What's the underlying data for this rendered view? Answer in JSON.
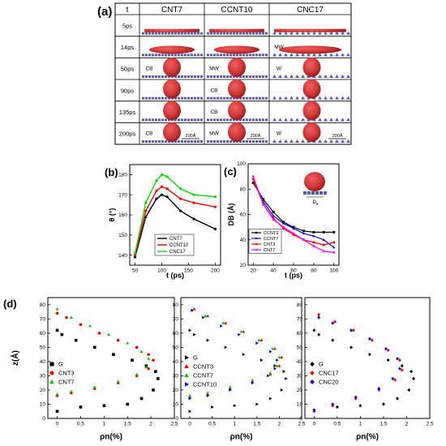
{
  "panel_a": {
    "label": "(a)",
    "header_t": "t",
    "columns": [
      "CNT7",
      "CCNT10",
      "CNC17"
    ],
    "rows": [
      {
        "time": "5ps",
        "tags": [
          "",
          "",
          ""
        ],
        "droplet": [
          0,
          0,
          0
        ]
      },
      {
        "time": "14ps",
        "tags": [
          "",
          "",
          "MW"
        ],
        "droplet": [
          1,
          1,
          1
        ]
      },
      {
        "time": "50ps",
        "tags": [
          "CB",
          "MW",
          "W"
        ],
        "droplet": [
          2,
          2,
          2
        ]
      },
      {
        "time": "90ps",
        "tags": [
          "",
          "CB",
          ""
        ],
        "droplet": [
          2,
          2,
          2
        ]
      },
      {
        "time": "135ps",
        "tags": [
          "",
          "CB",
          ""
        ],
        "droplet": [
          2,
          2,
          2
        ]
      },
      {
        "time": "200ps",
        "tags": [
          "CB",
          "MW",
          "W"
        ],
        "droplet": [
          2,
          2,
          2
        ]
      }
    ],
    "scale_label": "200Å"
  },
  "panel_b_label": "(b)",
  "panel_c_label": "(c)",
  "panel_c_inset_label": "D",
  "panel_c_inset_sub": "B",
  "panel_d_label": "(d)",
  "chart_data": [
    {
      "type": "line",
      "id": "b",
      "xlabel": "t (ps)",
      "ylabel": "θ (°)",
      "xlim": [
        40,
        210
      ],
      "ylim": [
        135,
        185
      ],
      "xticks": [
        50,
        100,
        150,
        200
      ],
      "yticks": [
        140,
        150,
        160,
        170,
        180
      ],
      "legend": "bottom-right",
      "series": [
        {
          "name": "CNT7",
          "color": "#000000",
          "x": [
            50,
            70,
            90,
            100,
            110,
            135,
            160,
            200
          ],
          "y": [
            139,
            159,
            168,
            170,
            169,
            162,
            158,
            153
          ]
        },
        {
          "name": "CCNT10",
          "color": "#ff0000",
          "x": [
            50,
            70,
            90,
            100,
            110,
            135,
            160,
            200
          ],
          "y": [
            140,
            162,
            172,
            174,
            173,
            168,
            166,
            164
          ]
        },
        {
          "name": "CNC17",
          "color": "#00dd00",
          "x": [
            50,
            70,
            90,
            100,
            110,
            135,
            160,
            200
          ],
          "y": [
            141,
            166,
            177,
            180,
            179,
            173,
            170,
            169
          ]
        }
      ]
    },
    {
      "type": "line",
      "id": "c",
      "xlabel": "t (ps)",
      "ylabel": "DB (Å)",
      "xlim": [
        15,
        105
      ],
      "ylim": [
        20,
        100
      ],
      "xticks": [
        20,
        40,
        60,
        80,
        100
      ],
      "yticks": [
        20,
        40,
        60,
        80,
        100
      ],
      "legend": "bottom-left",
      "series": [
        {
          "name": "CCNT3",
          "color": "#000000",
          "marker": "square",
          "x": [
            20,
            30,
            40,
            50,
            60,
            70,
            80,
            90,
            100
          ],
          "y": [
            85,
            72,
            62,
            54,
            50,
            47,
            46,
            46,
            46
          ]
        },
        {
          "name": "CCNT7",
          "color": "#0000ff",
          "marker": "triangle",
          "x": [
            20,
            30,
            40,
            50,
            60,
            70,
            80,
            90,
            100
          ],
          "y": [
            88,
            70,
            59,
            53,
            49,
            45,
            43,
            40,
            34
          ]
        },
        {
          "name": "CNT3",
          "color": "#ff0000",
          "marker": "circle",
          "x": [
            20,
            30,
            40,
            50,
            60,
            70,
            80,
            90,
            100
          ],
          "y": [
            88,
            68,
            57,
            49,
            44,
            40,
            38,
            36,
            38
          ]
        },
        {
          "name": "CNT7",
          "color": "#ff00ff",
          "marker": "diamond",
          "x": [
            20,
            30,
            40,
            50,
            60,
            70,
            80,
            90,
            100
          ],
          "y": [
            90,
            68,
            56,
            50,
            45,
            40,
            35,
            31,
            30
          ]
        }
      ]
    },
    {
      "type": "scatter",
      "id": "d1",
      "xlabel": "ρn(%)",
      "ylabel": "z(Å)",
      "xlim": [
        -0.2,
        2.5
      ],
      "ylim": [
        0,
        85
      ],
      "xticks": [
        0.0,
        0.5,
        1.0,
        1.5,
        2.0,
        2.5
      ],
      "yticks": [
        0,
        10,
        20,
        30,
        40,
        50,
        60,
        70,
        80
      ],
      "legend": "bottom-left",
      "series": [
        {
          "name": "G",
          "color": "#000000",
          "marker": "square",
          "x": [
            0.0,
            0.5,
            1.0,
            1.5,
            1.8,
            2.05,
            2.15,
            2.1,
            1.9,
            1.6,
            1.2,
            0.8,
            0.4,
            0.1,
            0.0
          ],
          "y": [
            5,
            8,
            9,
            10,
            14,
            20,
            28,
            33,
            37,
            41,
            45,
            50,
            55,
            59,
            62
          ]
        },
        {
          "name": "CNT3",
          "color": "#ff0000",
          "marker": "circle",
          "x": [
            0.0,
            0.3,
            0.8,
            1.3,
            1.7,
            1.95,
            2.05,
            1.95,
            1.7,
            1.3,
            0.9,
            0.5,
            0.2,
            0.0
          ],
          "y": [
            16,
            18,
            21,
            25,
            30,
            35,
            41,
            45,
            50,
            55,
            60,
            66,
            71,
            74
          ]
        },
        {
          "name": "CNT7",
          "color": "#00cc00",
          "marker": "triangle",
          "x": [
            0.0,
            0.3,
            0.8,
            1.3,
            1.7,
            1.9,
            1.95,
            1.8,
            1.5,
            1.1,
            0.7,
            0.3,
            0.0
          ],
          "y": [
            17,
            19,
            22,
            26,
            31,
            36,
            42,
            47,
            53,
            59,
            65,
            71,
            77
          ]
        }
      ]
    },
    {
      "type": "scatter",
      "id": "d2",
      "xlabel": "ρn(%)",
      "ylabel": "",
      "xlim": [
        -0.2,
        2.5
      ],
      "ylim": [
        0,
        85
      ],
      "xticks": [
        0.0,
        0.5,
        1.0,
        1.5,
        2.0,
        2.5
      ],
      "yticks": [
        0,
        10,
        20,
        30,
        40,
        50,
        60,
        70,
        80
      ],
      "legend": "bottom-left",
      "series": [
        {
          "name": "G",
          "color": "#000000",
          "marker": "triangle-right",
          "x": [
            0.0,
            0.5,
            1.0,
            1.5,
            1.8,
            2.05,
            2.15,
            2.1,
            1.9,
            1.6,
            1.2,
            0.8,
            0.4,
            0.1,
            0.0
          ],
          "y": [
            5,
            8,
            9,
            10,
            14,
            20,
            28,
            33,
            37,
            41,
            45,
            50,
            55,
            59,
            62
          ]
        },
        {
          "name": "CCNT3",
          "color": "#ff0000",
          "marker": "triangle",
          "x": [
            0.0,
            0.4,
            0.9,
            1.4,
            1.8,
            2.0,
            2.05,
            1.9,
            1.6,
            1.2,
            0.8,
            0.4,
            0.1
          ],
          "y": [
            15,
            17,
            21,
            26,
            31,
            37,
            43,
            49,
            55,
            61,
            67,
            72,
            77
          ]
        },
        {
          "name": "CCNT7",
          "color": "#00cc00",
          "marker": "triangle",
          "x": [
            0.0,
            0.4,
            0.9,
            1.4,
            1.8,
            1.95,
            2.0,
            1.85,
            1.55,
            1.15,
            0.75,
            0.35,
            0.05
          ],
          "y": [
            16,
            18,
            22,
            27,
            32,
            37,
            43,
            49,
            55,
            61,
            67,
            72,
            76
          ]
        },
        {
          "name": "CCNT10",
          "color": "#0000ff",
          "marker": "triangle-right",
          "x": [
            0.0,
            0.4,
            0.9,
            1.4,
            1.75,
            1.9,
            1.95,
            1.8,
            1.5,
            1.1,
            0.7,
            0.3,
            0.05
          ],
          "y": [
            14,
            16,
            20,
            25,
            30,
            35,
            41,
            47,
            53,
            59,
            65,
            71,
            76
          ]
        }
      ]
    },
    {
      "type": "scatter",
      "id": "d3",
      "xlabel": "ρn(%)",
      "ylabel": "",
      "xlim": [
        -0.2,
        2.5
      ],
      "ylim": [
        0,
        85
      ],
      "xticks": [
        0.0,
        0.5,
        1.0,
        1.5,
        2.0,
        2.5
      ],
      "yticks": [
        0,
        10,
        20,
        30,
        40,
        50,
        60,
        70,
        80
      ],
      "legend": "bottom-left",
      "series": [
        {
          "name": "G",
          "color": "#000000",
          "marker": "diamond",
          "x": [
            0.0,
            0.5,
            1.0,
            1.5,
            1.8,
            2.05,
            2.15,
            2.1,
            1.9,
            1.6,
            1.2,
            0.8,
            0.4,
            0.1,
            0.0
          ],
          "y": [
            5,
            8,
            9,
            10,
            14,
            20,
            28,
            33,
            37,
            41,
            45,
            50,
            55,
            59,
            62
          ]
        },
        {
          "name": "CNC17",
          "color": "#ff0000",
          "marker": "diamond",
          "x": [
            0.0,
            0.4,
            0.9,
            1.4,
            1.75,
            1.9,
            1.85,
            1.6,
            1.25,
            0.85,
            0.45,
            0.1
          ],
          "y": [
            5,
            9,
            14,
            20,
            27,
            34,
            41,
            48,
            55,
            62,
            68,
            73
          ]
        },
        {
          "name": "CNC20",
          "color": "#0000ff",
          "marker": "diamond",
          "x": [
            0.0,
            0.4,
            0.9,
            1.4,
            1.7,
            1.85,
            1.8,
            1.55,
            1.2,
            0.8,
            0.4,
            0.1
          ],
          "y": [
            6,
            10,
            15,
            21,
            28,
            35,
            42,
            49,
            56,
            62,
            67,
            71
          ]
        }
      ]
    }
  ]
}
